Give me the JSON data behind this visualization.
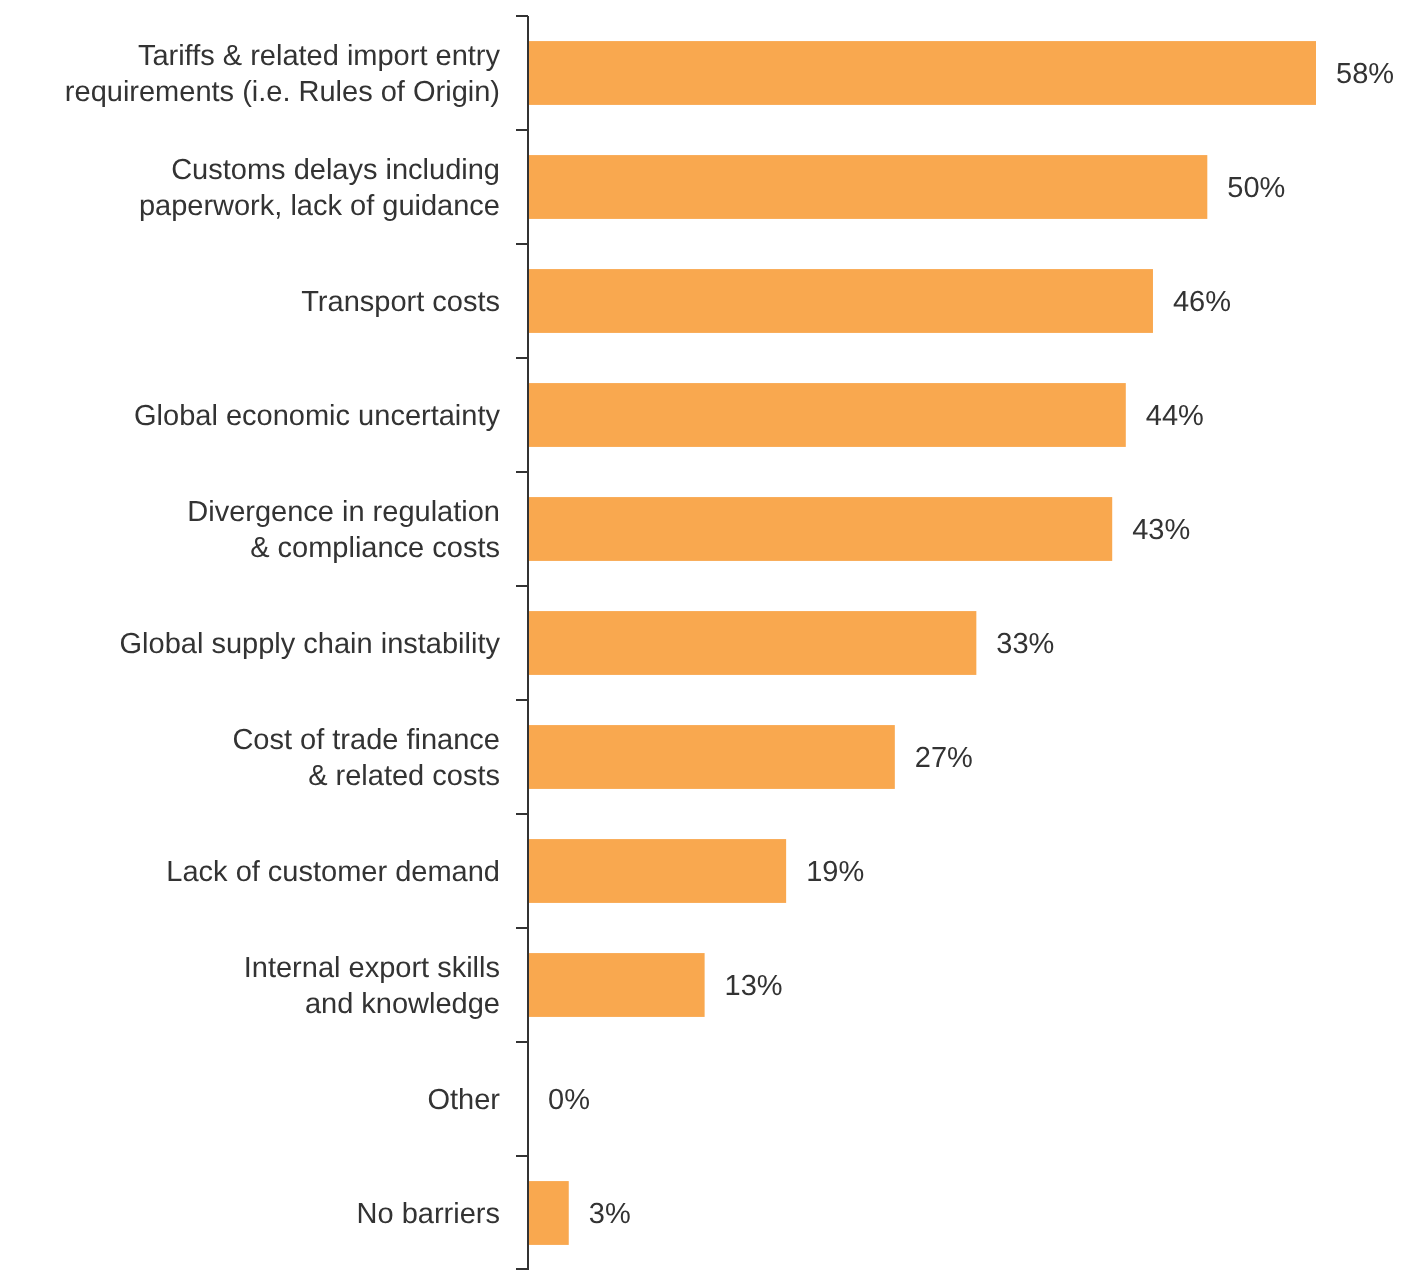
{
  "chart_data": {
    "type": "bar",
    "orientation": "horizontal",
    "data_labels": true,
    "color": "#f9a84f",
    "categories": [
      "Tariffs & related import entry\nrequirements (i.e. Rules of Origin)",
      "Customs delays including\npaperwork, lack of guidance",
      "Transport costs",
      "Global economic uncertainty",
      "Divergence in regulation\n& compliance costs",
      "Global supply chain instability",
      "Cost of trade finance\n& related costs",
      "Lack of customer demand",
      "Internal export skills\nand knowledge",
      "Other",
      "No barriers"
    ],
    "values": [
      58,
      50,
      46,
      44,
      43,
      33,
      27,
      19,
      13,
      0,
      3
    ],
    "value_labels": [
      "58%",
      "50%",
      "46%",
      "44%",
      "43%",
      "33%",
      "27%",
      "19%",
      "13%",
      "0%",
      "3%"
    ]
  }
}
